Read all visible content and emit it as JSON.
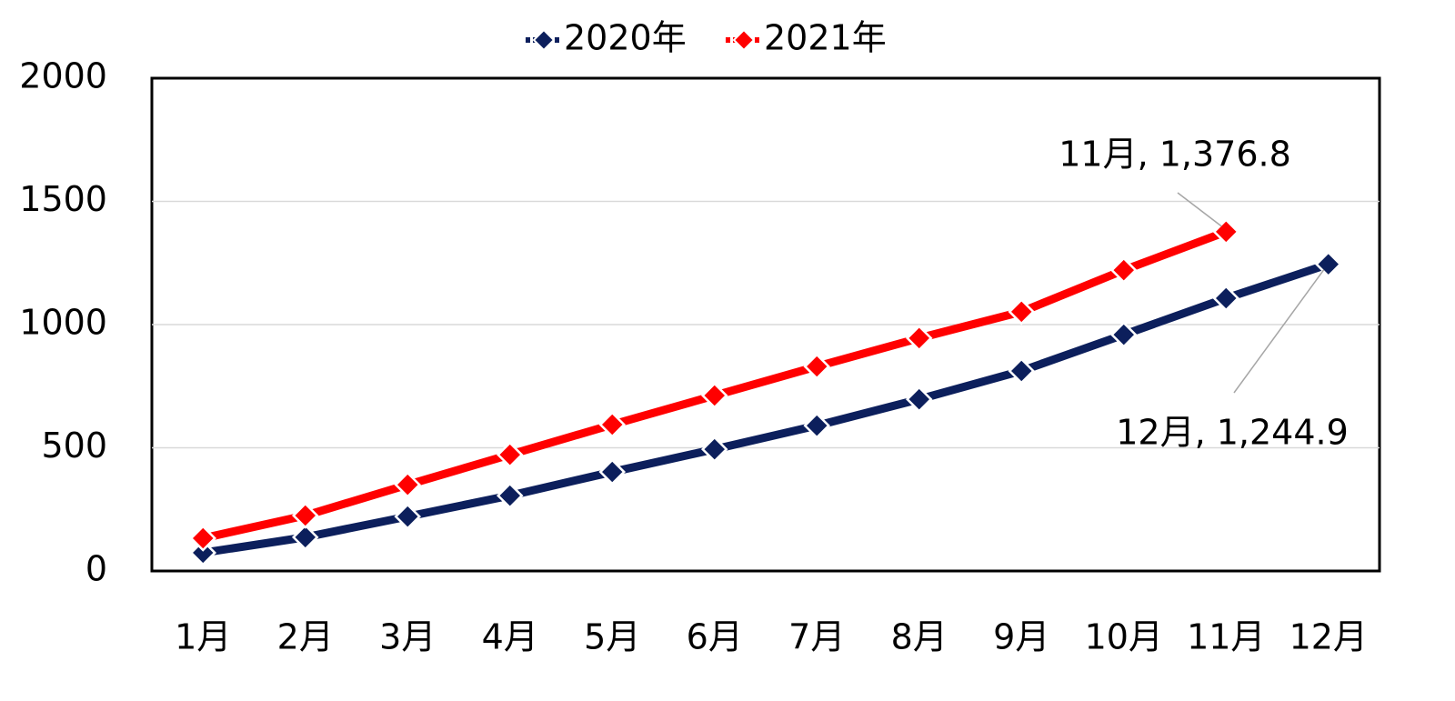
{
  "chart_data": {
    "type": "line",
    "categories": [
      "1月",
      "2月",
      "3月",
      "4月",
      "5月",
      "6月",
      "7月",
      "8月",
      "9月",
      "10月",
      "11月",
      "12月"
    ],
    "series": [
      {
        "name": "2020年",
        "color": "#0c1f5c",
        "values": [
          74,
          137,
          221,
          306,
          402,
          494,
          590,
          697,
          812,
          959,
          1107,
          1244.9
        ],
        "value_labels": [
          null,
          null,
          null,
          null,
          null,
          null,
          null,
          null,
          null,
          null,
          null,
          "12月, 1,244.9"
        ]
      },
      {
        "name": "2021年",
        "color": "#ff0000",
        "values": [
          133,
          225,
          350,
          472,
          594,
          712,
          830,
          945,
          1052,
          1221,
          1376.8,
          null
        ],
        "value_labels": [
          null,
          null,
          null,
          null,
          null,
          null,
          null,
          null,
          null,
          null,
          "11月, 1,376.8",
          null
        ]
      }
    ],
    "ylim": [
      0,
      2000
    ],
    "yticks": [
      0,
      500,
      1000,
      1500,
      2000
    ],
    "grid": true,
    "legend": "top"
  }
}
